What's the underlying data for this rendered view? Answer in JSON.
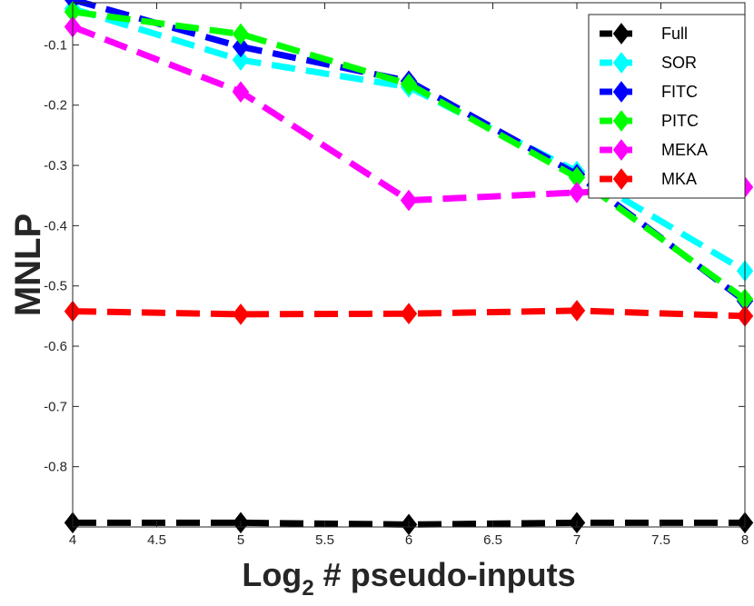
{
  "chart_data": {
    "type": "line",
    "xlabel_main": "Log",
    "xlabel_sub": "2",
    "xlabel_rest": " # pseudo-inputs",
    "ylabel": "MNLP",
    "x": [
      4,
      5,
      6,
      7,
      8
    ],
    "xlim": [
      4,
      8
    ],
    "ylim": [
      -0.9,
      -0.03
    ],
    "xticks": [
      4,
      4.5,
      5,
      5.5,
      6,
      6.5,
      7,
      7.5,
      8
    ],
    "xtick_labels": [
      "4",
      "4.5",
      "5",
      "5.5",
      "6",
      "6.5",
      "7",
      "7.5",
      "8"
    ],
    "yticks": [
      -0.1,
      -0.2,
      -0.3,
      -0.4,
      -0.5,
      -0.6,
      -0.7,
      -0.8
    ],
    "ytick_labels": [
      "-0.1",
      "-0.2",
      "-0.3",
      "-0.4",
      "-0.5",
      "-0.6",
      "-0.7",
      "-0.8"
    ],
    "grid": false,
    "legend_position": "top-right",
    "series": [
      {
        "name": "Full",
        "color": "#000000",
        "values": [
          -0.893,
          -0.893,
          -0.896,
          -0.893,
          -0.893
        ]
      },
      {
        "name": "SOR",
        "color": "#00ffff",
        "values": [
          -0.04,
          -0.125,
          -0.17,
          -0.31,
          -0.475
        ]
      },
      {
        "name": "FITC",
        "color": "#0000ff",
        "values": [
          -0.025,
          -0.103,
          -0.16,
          -0.315,
          -0.525
        ]
      },
      {
        "name": "PITC",
        "color": "#00ff00",
        "values": [
          -0.045,
          -0.082,
          -0.165,
          -0.32,
          -0.522
        ]
      },
      {
        "name": "MEKA",
        "color": "#ff00ff",
        "values": [
          -0.07,
          -0.178,
          -0.358,
          -0.345,
          -0.336
        ]
      },
      {
        "name": "MKA",
        "color": "#ff0000",
        "values": [
          -0.542,
          -0.547,
          -0.546,
          -0.541,
          -0.55
        ]
      }
    ]
  }
}
